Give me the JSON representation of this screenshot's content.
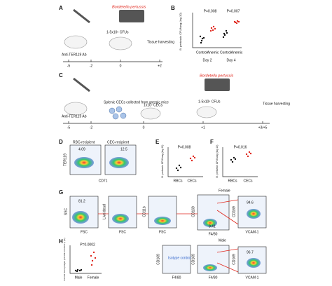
{
  "panels": {
    "a": {
      "letter": "A",
      "organism": "Bordetella pertussis",
      "dose": "1-5x10⁶ CFUs",
      "harvest": "Tissue harvesting",
      "antibody": "Anti-TER119 Ab",
      "timeline": [
        "-5",
        "-2",
        "0",
        "+2"
      ]
    },
    "b": {
      "letter": "B",
      "y_label": "B. pertussis CFU/lung (log 10)",
      "p_values": [
        "P=0.008",
        "P=0.007"
      ],
      "groups": [
        "Control",
        "Anemic",
        "Control",
        "Anemic"
      ],
      "days": [
        "Day 2",
        "Day 4"
      ]
    },
    "c": {
      "letter": "C",
      "organism": "Bordetella pertussis",
      "cells": "Splenic CECs collected from anemic mice",
      "transfer": "1x10⁷ CECs",
      "dose": "1-5x10⁶ CFUs",
      "harvest": "Tissue harvesting",
      "antibody": "Anti-TER119 Ab",
      "timeline": [
        "-5",
        "-2",
        "0",
        "+1",
        "+3/+5"
      ]
    },
    "d": {
      "letter": "D",
      "titles": [
        "RBC-recipient",
        "CEC-recipient"
      ],
      "gates": [
        "4.09",
        "12.5"
      ],
      "y_label": "TER119",
      "x_label": "CD71"
    },
    "e": {
      "letter": "E",
      "p_value": "P=0.008",
      "groups": [
        "RBCs",
        "CECs"
      ],
      "y_label": "B. pertussis CFU/lung (log 10)"
    },
    "f": {
      "letter": "F",
      "p_value": "P=0.016",
      "groups": [
        "RBCs",
        "CECs"
      ],
      "y_label": "B. pertussis CFU/lung (log 10)"
    },
    "g": {
      "letter": "G",
      "gate1": "81.2",
      "sex": "Female",
      "gate_small": "8.41",
      "gate_final": "94.6",
      "labels": [
        "SSC",
        "FSC",
        "Live/dead",
        "FSC",
        "CD11b",
        "FSC",
        "CD169",
        "F4/80",
        "CD169",
        "VCAM-1"
      ]
    },
    "h": {
      "letter": "H",
      "p_value": "P=0.0002",
      "groups": [
        "Male",
        "Female"
      ],
      "y_label": "Central macrophages (CD169+VCAM-1+) (%)",
      "sex": "Male",
      "isotype": "Isotype control",
      "gate_final": "96.7",
      "labels": [
        "CD169",
        "F4/80",
        "CD169",
        "F4/80",
        "CD169",
        "VCAM-1"
      ]
    }
  }
}
